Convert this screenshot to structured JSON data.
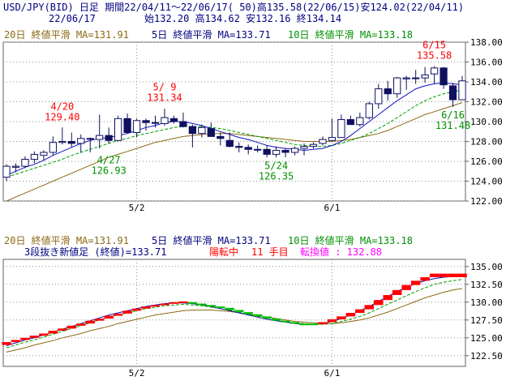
{
  "header": {
    "line1": "USD/JPY(BID) 日足 期間22/04/11〜22/06/17( 50)高135.58(22/06/15)安124.02(22/04/11)",
    "date": "22/06/17",
    "ohlc": "始132.20 高134.62 安132.16 終134.14"
  },
  "legend_top": {
    "ma20": "20日 終値平滑 MA=131.91",
    "ma5": "5日 終値平滑 MA=133.71",
    "ma10": "10日 終値平滑 MA=133.18"
  },
  "legend_bottom": {
    "ma20": "20日 終値平滑 MA=131.91",
    "ma5": "5日 終値平滑 MA=133.71",
    "ma10": "10日 終値平滑 MA=133.18",
    "line_label": "3段抜き新値足 (終値)=133.71",
    "state": "陽転中",
    "count": "11 手目",
    "reversal": "転換値 : 132.88"
  },
  "colors": {
    "ma20": "#8B6914",
    "ma5": "#1010C0",
    "ma10": "#00A000",
    "up_candle": "#FFFFFF",
    "down_candle": "#101060",
    "up_brick": "#FF0000",
    "down_brick": "#00C000",
    "annot_high": "#FF0000",
    "annot_low": "#009000",
    "label_ma5": "#000080",
    "label_ma10": "#009000",
    "label_ma20": "#8B6914",
    "state": "#FF0000",
    "count": "#FF0000",
    "reversal": "#FF00FF"
  },
  "chart_data": [
    {
      "type": "candlestick",
      "ylim": [
        122,
        138
      ],
      "y_ticks": [
        "122.00",
        "124.00",
        "126.00",
        "128.00",
        "130.00",
        "132.00",
        "134.00",
        "136.00",
        "138.00"
      ],
      "x_ticks": [
        {
          "i": 14,
          "label": "5/2"
        },
        {
          "i": 35,
          "label": "6/1"
        }
      ],
      "ohlc": [
        [
          124.4,
          125.7,
          124.0,
          125.5
        ],
        [
          125.4,
          125.8,
          124.9,
          125.5
        ],
        [
          125.5,
          126.5,
          125.3,
          126.2
        ],
        [
          126.2,
          127.0,
          125.8,
          126.7
        ],
        [
          126.6,
          127.1,
          126.1,
          126.9
        ],
        [
          126.9,
          128.5,
          126.6,
          127.9
        ],
        [
          127.9,
          129.4,
          127.7,
          128.0
        ],
        [
          128.0,
          128.9,
          127.4,
          127.8
        ],
        [
          127.8,
          128.7,
          126.9,
          128.3
        ],
        [
          128.3,
          128.4,
          126.9,
          128.3
        ],
        [
          128.2,
          130.7,
          127.3,
          128.6
        ],
        [
          128.6,
          129.4,
          127.8,
          128.1
        ],
        [
          128.1,
          130.6,
          128.0,
          130.3
        ],
        [
          130.3,
          130.8,
          128.8,
          128.9
        ],
        [
          128.9,
          130.3,
          128.4,
          130.1
        ],
        [
          130.1,
          130.3,
          129.1,
          129.9
        ],
        [
          129.9,
          130.6,
          129.4,
          129.9
        ],
        [
          129.8,
          131.3,
          129.6,
          130.4
        ],
        [
          130.3,
          130.6,
          129.8,
          130.0
        ],
        [
          130.0,
          130.9,
          129.4,
          129.5
        ],
        [
          129.5,
          129.7,
          127.4,
          128.8
        ],
        [
          128.8,
          129.7,
          128.4,
          129.4
        ],
        [
          129.3,
          129.9,
          128.6,
          128.5
        ],
        [
          128.5,
          128.9,
          127.6,
          128.3
        ],
        [
          128.1,
          128.9,
          127.4,
          127.5
        ],
        [
          127.5,
          127.9,
          126.9,
          127.4
        ],
        [
          127.4,
          127.7,
          126.7,
          127.2
        ],
        [
          127.2,
          127.6,
          126.9,
          127.2
        ],
        [
          127.2,
          127.6,
          126.4,
          126.7
        ],
        [
          126.7,
          127.5,
          126.4,
          127.1
        ],
        [
          127.1,
          127.3,
          126.4,
          126.9
        ],
        [
          126.9,
          127.5,
          126.6,
          127.3
        ],
        [
          127.3,
          127.8,
          126.6,
          127.5
        ],
        [
          127.5,
          127.9,
          127.3,
          127.7
        ],
        [
          127.8,
          128.5,
          127.6,
          128.2
        ],
        [
          128.1,
          130.3,
          128.0,
          128.4
        ],
        [
          128.4,
          130.7,
          128.4,
          130.2
        ],
        [
          130.2,
          130.6,
          129.7,
          129.7
        ],
        [
          129.7,
          130.9,
          129.5,
          130.4
        ],
        [
          130.4,
          132.0,
          130.2,
          131.8
        ],
        [
          131.8,
          133.8,
          131.3,
          133.3
        ],
        [
          133.3,
          134.1,
          132.1,
          132.8
        ],
        [
          132.8,
          134.5,
          132.4,
          134.4
        ],
        [
          134.3,
          134.6,
          133.2,
          134.4
        ],
        [
          134.4,
          135.2,
          133.8,
          134.4
        ],
        [
          134.4,
          135.5,
          133.9,
          134.7
        ],
        [
          134.8,
          135.58,
          133.8,
          135.4
        ],
        [
          135.4,
          135.5,
          133.3,
          133.7
        ],
        [
          133.6,
          133.9,
          131.48,
          132.2
        ],
        [
          132.2,
          134.6,
          132.2,
          134.1
        ]
      ],
      "ma5": [
        124.6,
        125.0,
        125.4,
        125.7,
        126.1,
        126.6,
        127.0,
        127.4,
        127.8,
        128.1,
        128.3,
        128.4,
        128.6,
        128.8,
        129.1,
        129.4,
        129.6,
        129.9,
        130.0,
        130.0,
        129.8,
        129.6,
        129.3,
        129.0,
        128.7,
        128.4,
        128.2,
        127.9,
        127.6,
        127.4,
        127.3,
        127.2,
        127.1,
        127.2,
        127.3,
        127.6,
        128.0,
        128.6,
        129.3,
        130.0,
        130.7,
        131.4,
        132.1,
        132.7,
        133.3,
        133.6,
        133.8,
        133.9,
        133.8,
        133.71
      ],
      "ma10": [
        124.4,
        124.7,
        125.0,
        125.3,
        125.6,
        125.9,
        126.2,
        126.6,
        126.9,
        127.2,
        127.5,
        127.8,
        128.1,
        128.3,
        128.6,
        128.8,
        129.0,
        129.2,
        129.4,
        129.5,
        129.5,
        129.5,
        129.4,
        129.3,
        129.1,
        128.9,
        128.7,
        128.5,
        128.3,
        128.1,
        127.9,
        127.7,
        127.6,
        127.5,
        127.5,
        127.6,
        127.8,
        128.1,
        128.4,
        128.8,
        129.3,
        129.8,
        130.4,
        131.0,
        131.6,
        132.1,
        132.5,
        132.8,
        133.0,
        133.18
      ],
      "ma20": [
        122.0,
        122.4,
        122.8,
        123.2,
        123.6,
        124.0,
        124.4,
        124.8,
        125.2,
        125.6,
        126.0,
        126.4,
        126.7,
        127.0,
        127.3,
        127.6,
        127.9,
        128.1,
        128.3,
        128.5,
        128.6,
        128.7,
        128.8,
        128.8,
        128.8,
        128.7,
        128.6,
        128.5,
        128.4,
        128.3,
        128.2,
        128.1,
        128.0,
        128.0,
        128.0,
        128.0,
        128.1,
        128.2,
        128.4,
        128.6,
        128.8,
        129.1,
        129.5,
        129.9,
        130.3,
        130.7,
        131.0,
        131.3,
        131.6,
        131.91
      ],
      "annotations": [
        {
          "i": 6,
          "price": 129.4,
          "text1": "4/20",
          "text2": "129.40",
          "kind": "high"
        },
        {
          "i": 17,
          "price": 131.34,
          "text1": "5/ 9",
          "text2": "131.34",
          "kind": "high"
        },
        {
          "i": 11,
          "price": 126.93,
          "text1": "4/27",
          "text2": "126.93",
          "kind": "low"
        },
        {
          "i": 29,
          "price": 126.35,
          "text1": "5/24",
          "text2": "126.35",
          "kind": "low"
        },
        {
          "i": 46,
          "price": 135.58,
          "text1": "6/15",
          "text2": "135.58",
          "kind": "high"
        },
        {
          "i": 48,
          "price": 131.48,
          "text1": "6/16",
          "text2": "131.48",
          "kind": "low"
        }
      ]
    },
    {
      "type": "three-line-break",
      "ylim": [
        121,
        136
      ],
      "y_ticks": [
        "122.50",
        "125.00",
        "127.50",
        "130.00",
        "132.50",
        "135.00"
      ],
      "x_ticks": [
        {
          "i": 14,
          "label": "5/2"
        },
        {
          "i": 35,
          "label": "6/1"
        }
      ],
      "series_label": "3段抜き新値足 (終値)",
      "bricks": [
        {
          "i": 0,
          "lo": 124.0,
          "hi": 124.4,
          "dir": "up"
        },
        {
          "i": 1,
          "lo": 124.4,
          "hi": 124.7,
          "dir": "up"
        },
        {
          "i": 2,
          "lo": 124.7,
          "hi": 125.0,
          "dir": "up"
        },
        {
          "i": 3,
          "lo": 125.0,
          "hi": 125.3,
          "dir": "up"
        },
        {
          "i": 4,
          "lo": 125.3,
          "hi": 125.6,
          "dir": "up"
        },
        {
          "i": 5,
          "lo": 125.6,
          "hi": 126.0,
          "dir": "up"
        },
        {
          "i": 6,
          "lo": 126.0,
          "hi": 126.3,
          "dir": "up"
        },
        {
          "i": 7,
          "lo": 126.3,
          "hi": 126.7,
          "dir": "up"
        },
        {
          "i": 8,
          "lo": 126.7,
          "hi": 127.0,
          "dir": "up"
        },
        {
          "i": 9,
          "lo": 127.0,
          "hi": 127.4,
          "dir": "up"
        },
        {
          "i": 10,
          "lo": 127.4,
          "hi": 127.7,
          "dir": "up"
        },
        {
          "i": 11,
          "lo": 127.7,
          "hi": 128.1,
          "dir": "up"
        },
        {
          "i": 12,
          "lo": 128.1,
          "hi": 128.4,
          "dir": "up"
        },
        {
          "i": 13,
          "lo": 128.4,
          "hi": 128.8,
          "dir": "up"
        },
        {
          "i": 14,
          "lo": 128.8,
          "hi": 129.1,
          "dir": "up"
        },
        {
          "i": 15,
          "lo": 129.1,
          "hi": 129.4,
          "dir": "up"
        },
        {
          "i": 16,
          "lo": 129.4,
          "hi": 129.6,
          "dir": "up"
        },
        {
          "i": 17,
          "lo": 129.6,
          "hi": 129.8,
          "dir": "up"
        },
        {
          "i": 18,
          "lo": 129.8,
          "hi": 130.0,
          "dir": "up"
        },
        {
          "i": 19,
          "lo": 129.9,
          "hi": 130.1,
          "dir": "up"
        },
        {
          "i": 20,
          "lo": 129.8,
          "hi": 130.0,
          "dir": "down"
        },
        {
          "i": 21,
          "lo": 129.6,
          "hi": 129.8,
          "dir": "down"
        },
        {
          "i": 22,
          "lo": 129.4,
          "hi": 129.6,
          "dir": "down"
        },
        {
          "i": 23,
          "lo": 129.2,
          "hi": 129.4,
          "dir": "down"
        },
        {
          "i": 24,
          "lo": 128.9,
          "hi": 129.2,
          "dir": "down"
        },
        {
          "i": 25,
          "lo": 128.6,
          "hi": 128.9,
          "dir": "down"
        },
        {
          "i": 26,
          "lo": 128.3,
          "hi": 128.6,
          "dir": "down"
        },
        {
          "i": 27,
          "lo": 128.0,
          "hi": 128.3,
          "dir": "down"
        },
        {
          "i": 28,
          "lo": 127.7,
          "hi": 128.0,
          "dir": "down"
        },
        {
          "i": 29,
          "lo": 127.4,
          "hi": 127.7,
          "dir": "down"
        },
        {
          "i": 30,
          "lo": 127.2,
          "hi": 127.4,
          "dir": "down"
        },
        {
          "i": 31,
          "lo": 127.0,
          "hi": 127.2,
          "dir": "down"
        },
        {
          "i": 32,
          "lo": 126.8,
          "hi": 127.0,
          "dir": "down"
        },
        {
          "i": 33,
          "lo": 126.8,
          "hi": 127.0,
          "dir": "down"
        },
        {
          "i": 34,
          "lo": 126.9,
          "hi": 127.2,
          "dir": "up"
        },
        {
          "i": 35,
          "lo": 127.2,
          "hi": 127.6,
          "dir": "up"
        },
        {
          "i": 36,
          "lo": 127.6,
          "hi": 128.0,
          "dir": "up"
        },
        {
          "i": 37,
          "lo": 128.0,
          "hi": 128.5,
          "dir": "up"
        },
        {
          "i": 38,
          "lo": 128.5,
          "hi": 129.0,
          "dir": "up"
        },
        {
          "i": 39,
          "lo": 129.0,
          "hi": 129.6,
          "dir": "up"
        },
        {
          "i": 40,
          "lo": 129.6,
          "hi": 130.3,
          "dir": "up"
        },
        {
          "i": 41,
          "lo": 130.3,
          "hi": 131.0,
          "dir": "up"
        },
        {
          "i": 42,
          "lo": 131.0,
          "hi": 131.7,
          "dir": "up"
        },
        {
          "i": 43,
          "lo": 131.7,
          "hi": 132.4,
          "dir": "up"
        },
        {
          "i": 44,
          "lo": 132.4,
          "hi": 133.0,
          "dir": "up"
        },
        {
          "i": 45,
          "lo": 133.0,
          "hi": 133.5,
          "dir": "up"
        },
        {
          "i": 46,
          "lo": 133.5,
          "hi": 134.0,
          "dir": "up"
        },
        {
          "i": 47,
          "lo": 133.5,
          "hi": 134.0,
          "dir": "up"
        },
        {
          "i": 48,
          "lo": 133.5,
          "hi": 134.0,
          "dir": "up"
        },
        {
          "i": 49,
          "lo": 133.5,
          "hi": 134.0,
          "dir": "up"
        }
      ],
      "ma5": [
        123.9,
        124.3,
        124.7,
        125.0,
        125.4,
        125.8,
        126.2,
        126.6,
        127.0,
        127.4,
        127.8,
        128.2,
        128.5,
        128.8,
        129.1,
        129.4,
        129.6,
        129.8,
        129.9,
        129.9,
        129.8,
        129.6,
        129.4,
        129.1,
        128.8,
        128.5,
        128.2,
        127.9,
        127.6,
        127.4,
        127.2,
        127.0,
        126.9,
        126.9,
        127.0,
        127.3,
        127.7,
        128.2,
        128.8,
        129.4,
        130.1,
        130.8,
        131.5,
        132.1,
        132.6,
        133.0,
        133.3,
        133.5,
        133.6,
        133.71
      ],
      "ma10": [
        123.6,
        124.0,
        124.4,
        124.7,
        125.1,
        125.5,
        125.9,
        126.3,
        126.7,
        127.1,
        127.5,
        127.9,
        128.2,
        128.5,
        128.8,
        129.1,
        129.3,
        129.5,
        129.6,
        129.7,
        129.6,
        129.5,
        129.3,
        129.1,
        128.9,
        128.6,
        128.3,
        128.0,
        127.8,
        127.5,
        127.3,
        127.1,
        127.0,
        126.9,
        126.9,
        127.0,
        127.3,
        127.6,
        128.0,
        128.5,
        129.1,
        129.7,
        130.3,
        130.9,
        131.5,
        132.0,
        132.5,
        132.8,
        133.0,
        133.18
      ],
      "ma20": [
        123.0,
        123.3,
        123.6,
        124.0,
        124.3,
        124.6,
        125.0,
        125.3,
        125.6,
        126.0,
        126.3,
        126.6,
        127.0,
        127.3,
        127.6,
        127.9,
        128.2,
        128.4,
        128.6,
        128.8,
        128.9,
        128.9,
        128.9,
        128.8,
        128.7,
        128.5,
        128.3,
        128.1,
        127.9,
        127.7,
        127.5,
        127.3,
        127.2,
        127.1,
        127.0,
        127.0,
        127.1,
        127.3,
        127.5,
        127.8,
        128.2,
        128.6,
        129.1,
        129.6,
        130.1,
        130.6,
        131.0,
        131.4,
        131.7,
        131.91
      ]
    }
  ]
}
